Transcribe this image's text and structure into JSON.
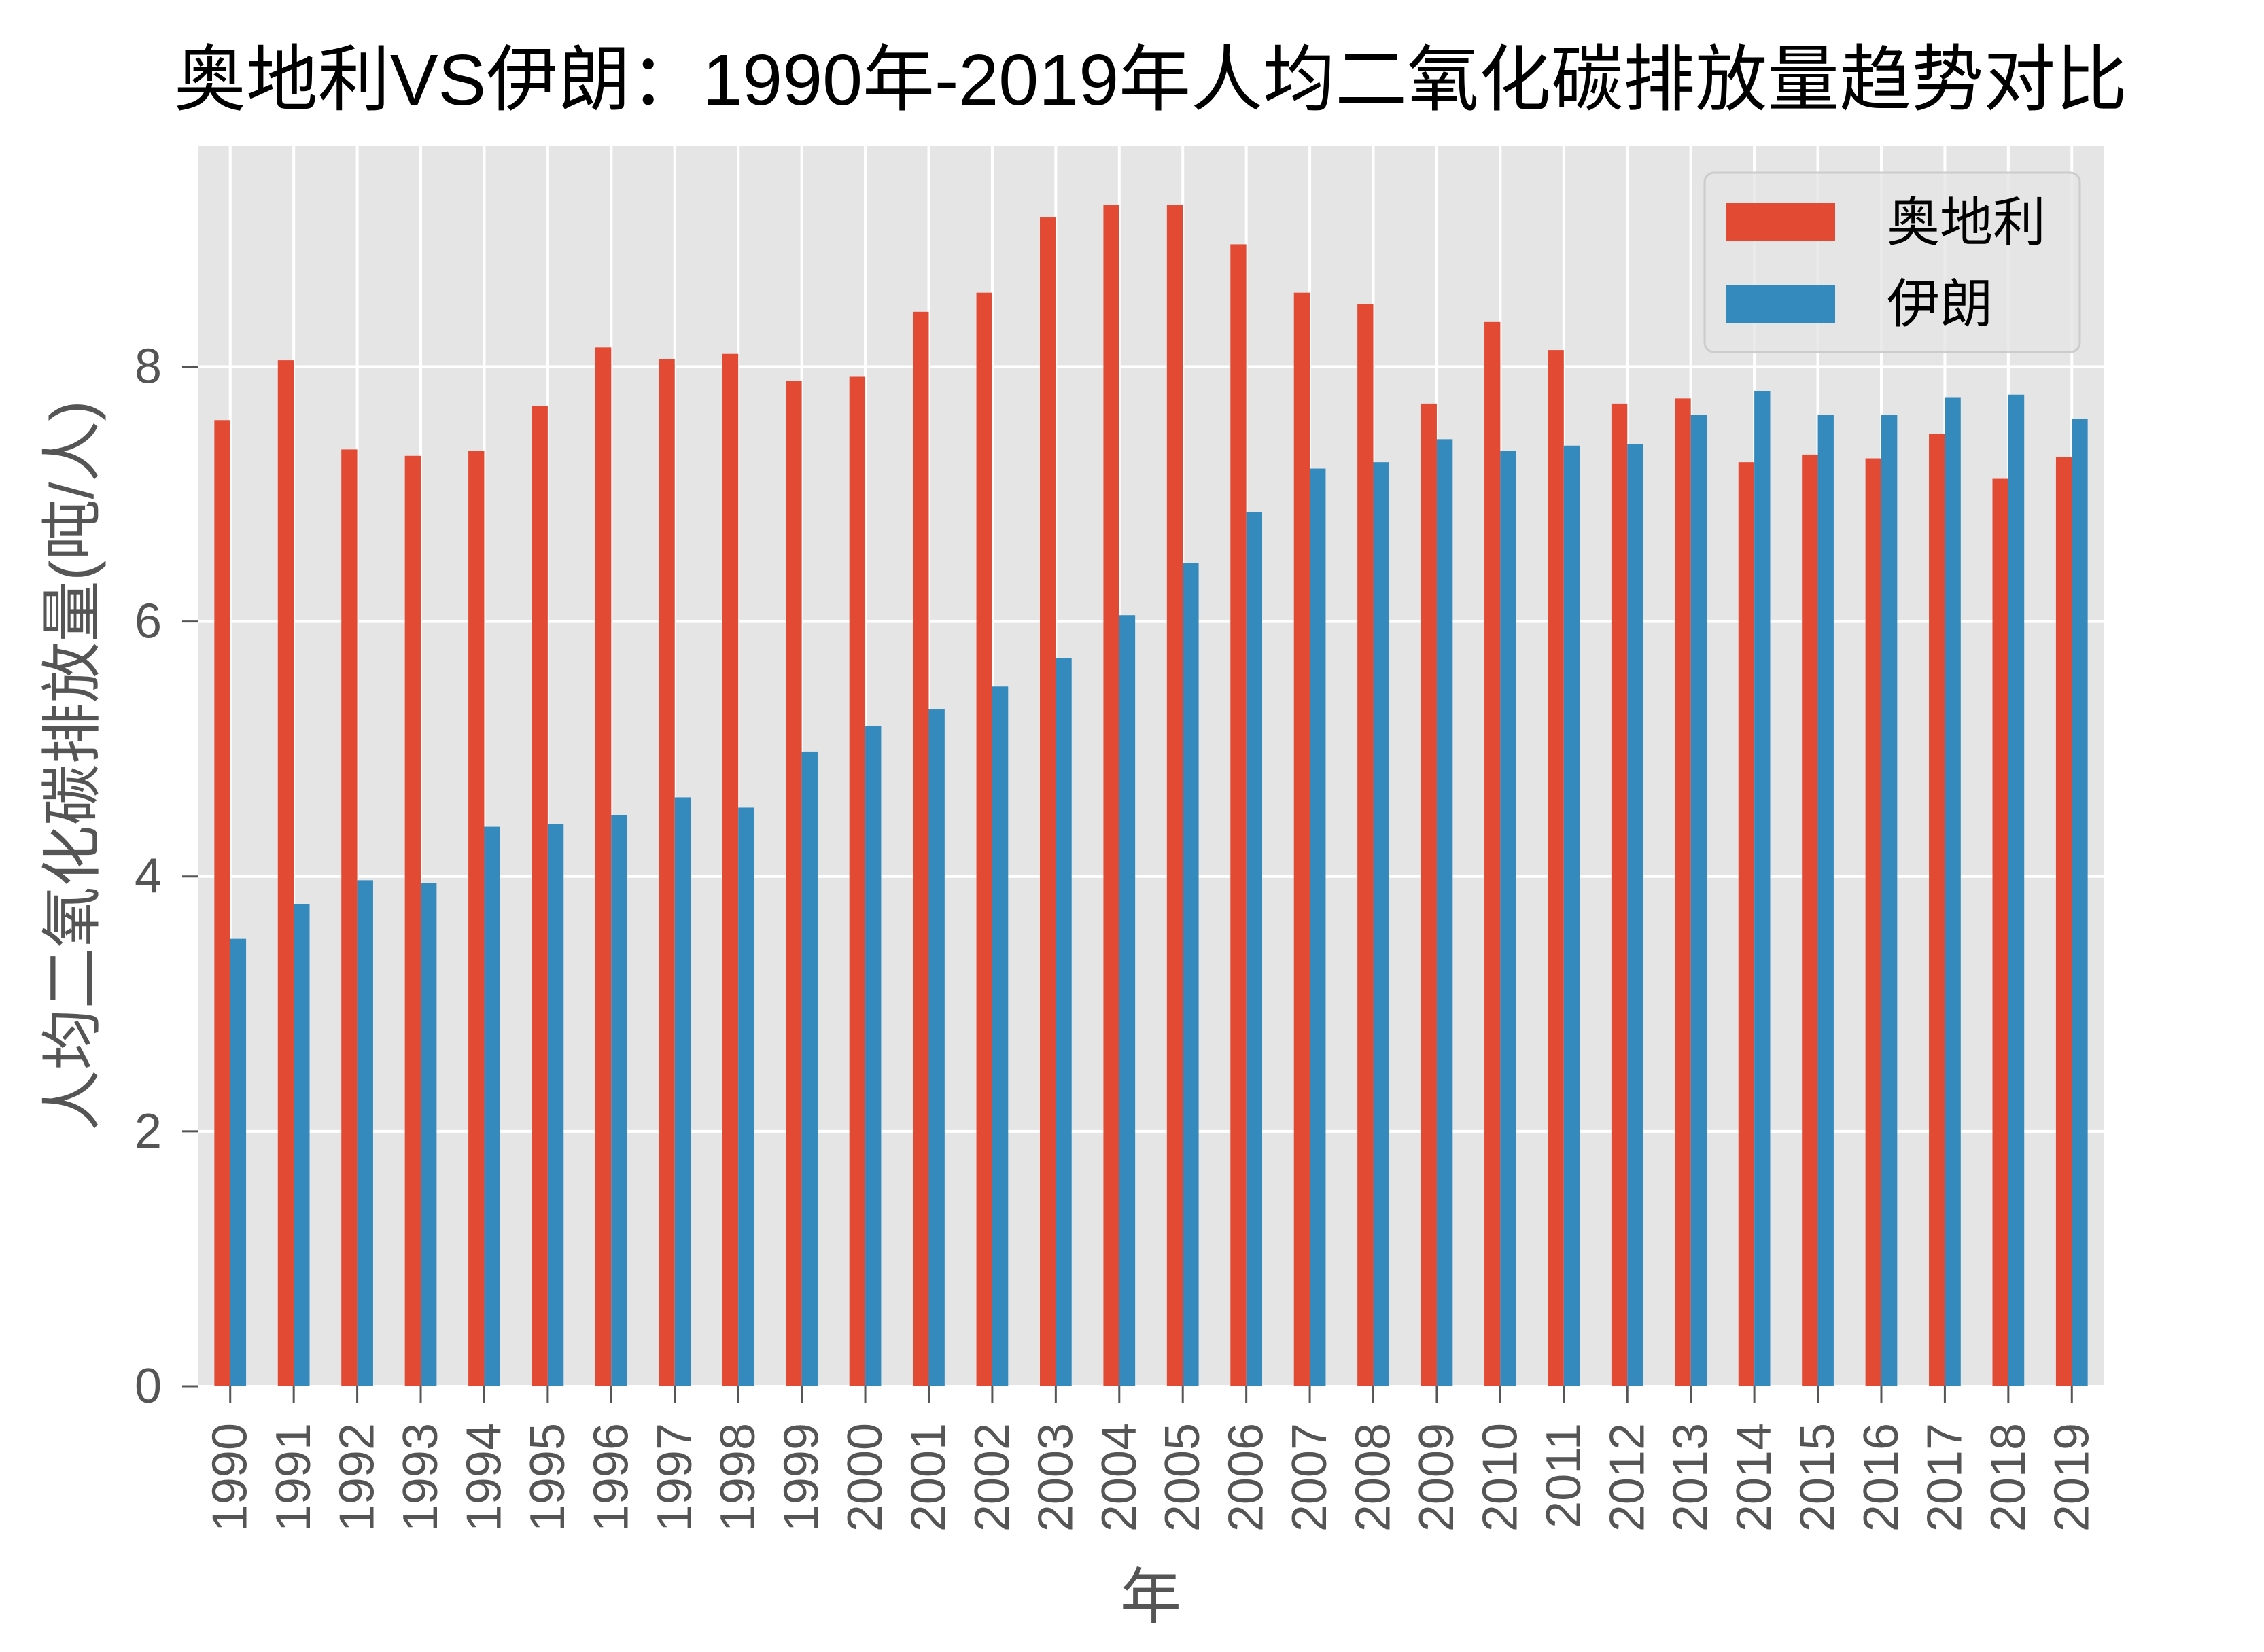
{
  "chart_data": {
    "type": "bar",
    "title": "奥地利VS伊朗：1990年-2019年人均二氧化碳排放量趋势对比",
    "xlabel": "年",
    "ylabel": "人均二氧化碳排放量(吨/人)",
    "categories": [
      "1990",
      "1991",
      "1992",
      "1993",
      "1994",
      "1995",
      "1996",
      "1997",
      "1998",
      "1999",
      "2000",
      "2001",
      "2002",
      "2003",
      "2004",
      "2005",
      "2006",
      "2007",
      "2008",
      "2009",
      "2010",
      "2011",
      "2012",
      "2013",
      "2014",
      "2015",
      "2016",
      "2017",
      "2018",
      "2019"
    ],
    "series": [
      {
        "name": "奥地利",
        "color": "#E24A33",
        "values": [
          7.58,
          8.05,
          7.35,
          7.3,
          7.34,
          7.69,
          8.15,
          8.06,
          8.1,
          7.89,
          7.92,
          8.43,
          8.58,
          9.17,
          9.27,
          9.27,
          8.96,
          8.58,
          8.49,
          7.71,
          8.35,
          8.13,
          7.71,
          7.75,
          7.25,
          7.31,
          7.28,
          7.47,
          7.12,
          7.29
        ]
      },
      {
        "name": "伊朗",
        "color": "#348ABD",
        "values": [
          3.51,
          3.78,
          3.97,
          3.95,
          4.39,
          4.41,
          4.48,
          4.62,
          4.54,
          4.98,
          5.18,
          5.31,
          5.49,
          5.71,
          6.05,
          6.46,
          6.86,
          7.2,
          7.25,
          7.43,
          7.34,
          7.38,
          7.39,
          7.62,
          7.81,
          7.62,
          7.62,
          7.76,
          7.78,
          7.59
        ]
      }
    ],
    "ylim": [
      0,
      9.73
    ],
    "yticks": [
      0,
      2,
      4,
      6,
      8
    ],
    "grid": true,
    "legend_position": "top-right",
    "style": {
      "axes_background": "#E5E5E5",
      "grid_color": "#FFFFFF",
      "tick_color": "#555555",
      "legend_background": "#E5E5E5",
      "legend_border": "#CCCCCC"
    }
  }
}
